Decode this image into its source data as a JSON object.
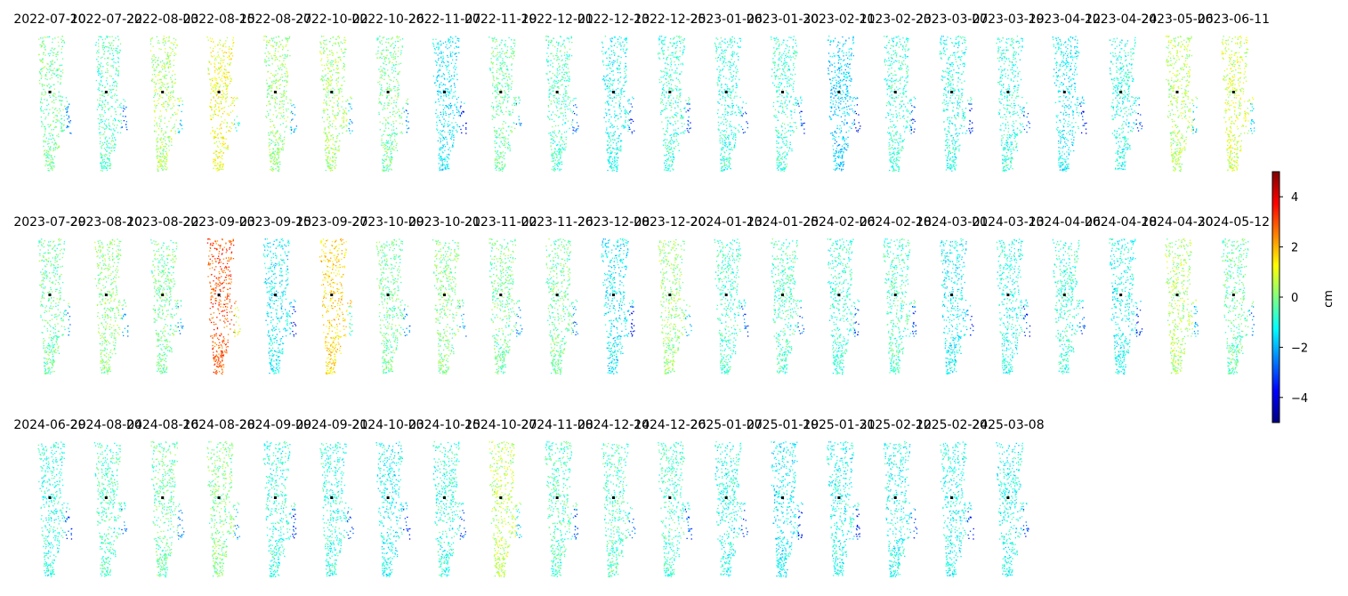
{
  "chart_data": {
    "type": "heatmap",
    "panel_dates": [
      "2022-07-10",
      "2022-07-22",
      "2022-08-03",
      "2022-08-15",
      "2022-08-27",
      "2022-10-02",
      "2022-10-26",
      "2022-11-07",
      "2022-11-19",
      "2022-12-01",
      "2022-12-13",
      "2022-12-25",
      "2023-01-06",
      "2023-01-30",
      "2023-02-11",
      "2023-02-23",
      "2023-03-07",
      "2023-03-19",
      "2023-04-12",
      "2023-04-24",
      "2023-05-06",
      "2023-06-11",
      "2023-07-29",
      "2023-08-10",
      "2023-08-22",
      "2023-09-03",
      "2023-09-15",
      "2023-09-27",
      "2023-10-09",
      "2023-10-21",
      "2023-11-02",
      "2023-11-26",
      "2023-12-08",
      "2023-12-20",
      "2024-01-13",
      "2024-01-25",
      "2024-02-06",
      "2024-02-18",
      "2024-03-01",
      "2024-03-13",
      "2024-04-06",
      "2024-04-18",
      "2024-04-30",
      "2024-05-12",
      "2024-06-29",
      "2024-08-04",
      "2024-08-16",
      "2024-08-28",
      "2024-09-09",
      "2024-09-21",
      "2024-10-03",
      "2024-10-15",
      "2024-10-27",
      "2024-11-08",
      "2024-12-14",
      "2024-12-26",
      "2025-01-07",
      "2025-01-19",
      "2025-01-31",
      "2025-02-12",
      "2025-02-24",
      "2025-03-08"
    ],
    "colorbar": {
      "label": "cm",
      "range": [
        -5,
        5
      ],
      "ticks": [
        4,
        2,
        0,
        -2,
        -4
      ],
      "tick_labels": [
        "4",
        "2",
        "0",
        "−2",
        "−4"
      ],
      "colormap": "jet",
      "colors": [
        "#000080",
        "#0000ff",
        "#0080ff",
        "#00ffff",
        "#80ff80",
        "#ffff00",
        "#ff8000",
        "#ff0000",
        "#800000"
      ]
    },
    "reference_point_color": "#000000",
    "panel_bias_cm": [
      -0.2,
      -0.6,
      0.4,
      1.1,
      0.2,
      0.3,
      -0.2,
      -1.4,
      -0.3,
      -0.6,
      -1.1,
      -0.8,
      -0.9,
      -0.8,
      -1.7,
      -0.8,
      -1.0,
      -0.9,
      -1.3,
      -1.0,
      0.5,
      0.8,
      -0.3,
      0.1,
      -0.2,
      3.0,
      -1.3,
      1.6,
      -0.2,
      0.0,
      -0.2,
      -0.2,
      -1.4,
      0.2,
      -0.7,
      -0.6,
      -0.8,
      -0.6,
      -1.3,
      -1.0,
      -0.8,
      -1.1,
      0.4,
      -0.4,
      -0.9,
      -0.6,
      -0.3,
      0.0,
      -0.9,
      -0.9,
      -1.2,
      -0.9,
      0.6,
      -0.6,
      -0.6,
      -0.7,
      -1.0,
      -1.3,
      -1.1,
      -1.1,
      -1.1,
      -1.1
    ]
  }
}
